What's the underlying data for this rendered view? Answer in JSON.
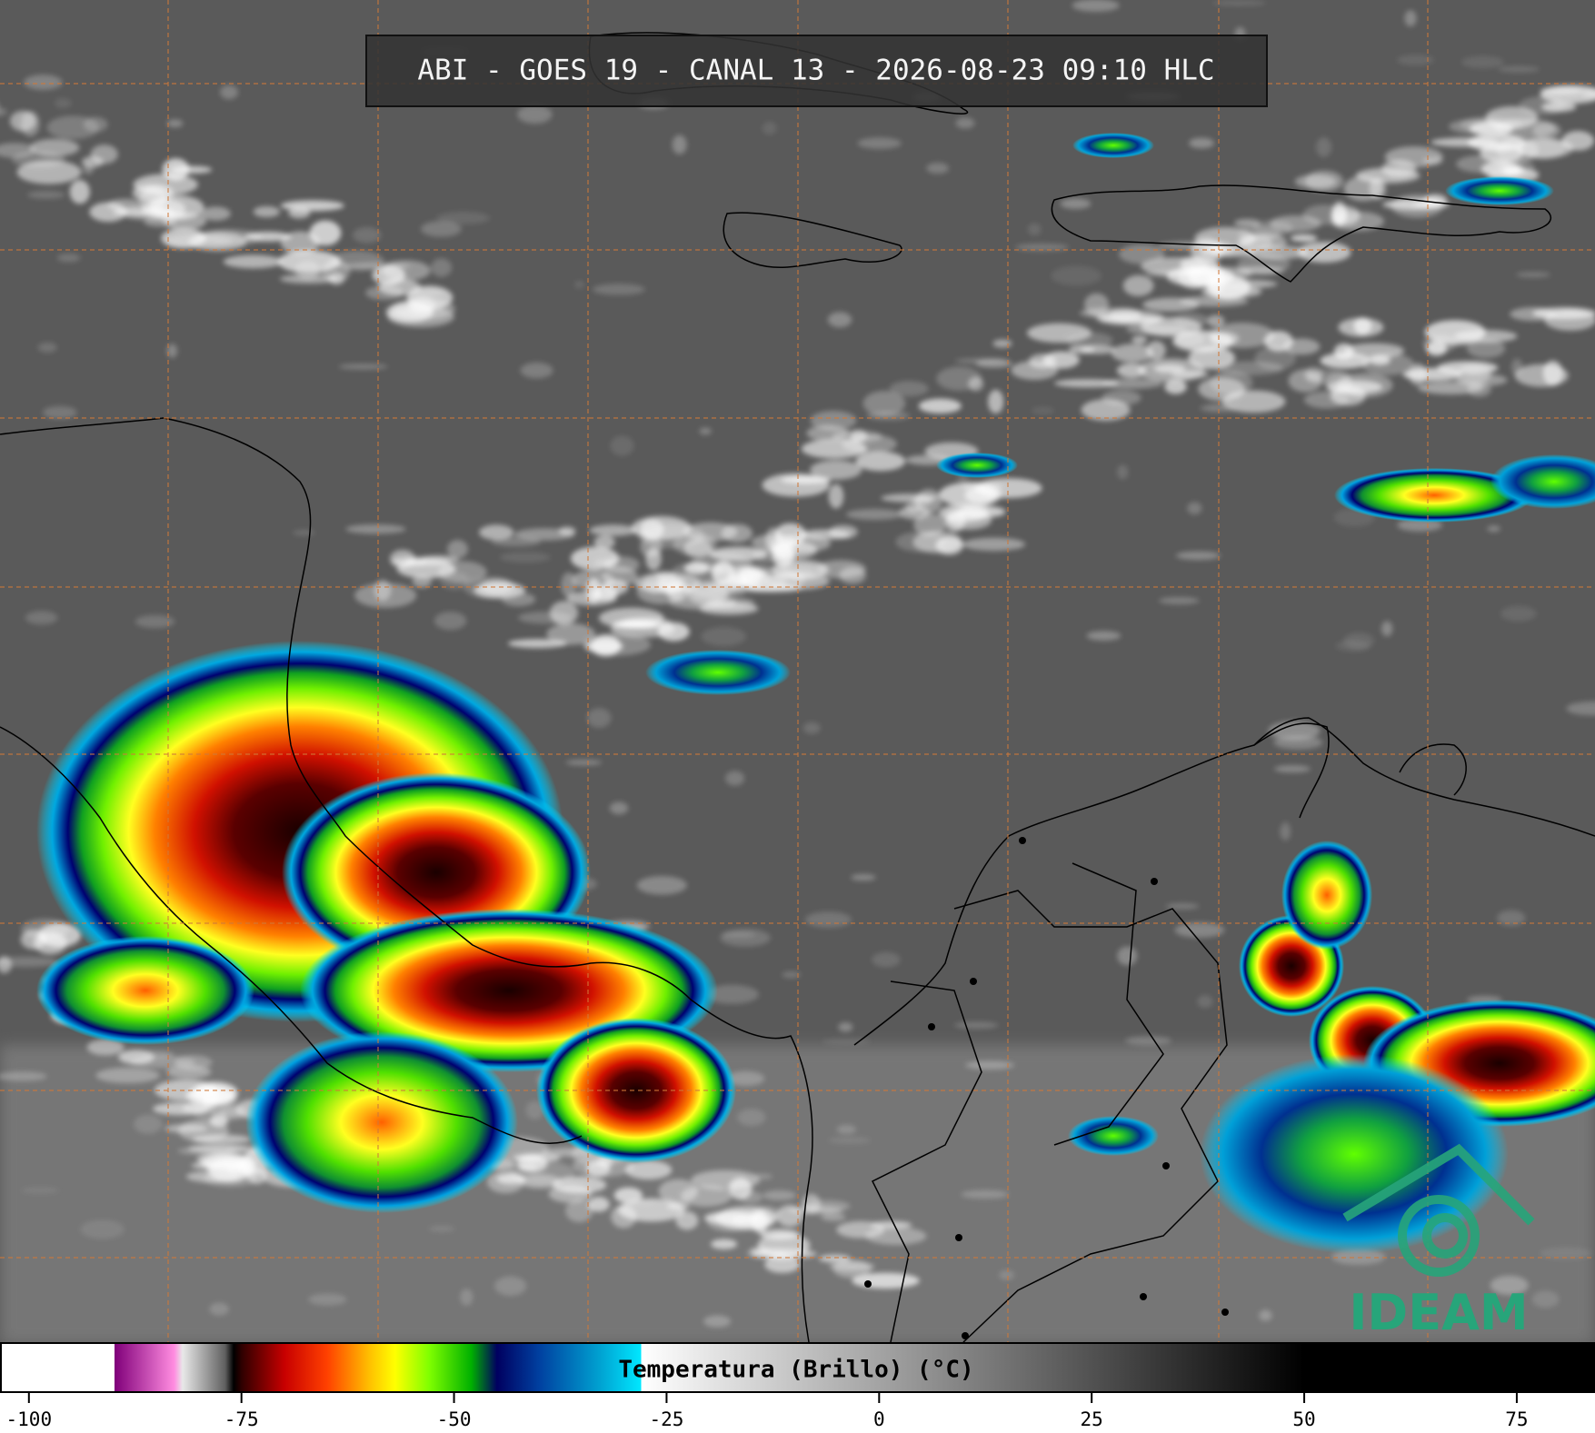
{
  "title": "ABI - GOES 19 - CANAL 13 - 2026-08-23 09:10 HLC",
  "logo": "IDEAM",
  "colorbar": {
    "label": "Temperatura (Brillo) (°C)",
    "lim": [
      -103.4,
      84.2
    ],
    "ticks": [
      -100,
      -75,
      -50,
      -25,
      0,
      25,
      50,
      75
    ],
    "stops": [
      {
        "value": -103.4,
        "color": "#ffffff"
      },
      {
        "value": -90,
        "color": "#ffffff"
      },
      {
        "value": -90,
        "color": "#80007a"
      },
      {
        "value": -83,
        "color": "#ff8ce0"
      },
      {
        "value": -82,
        "color": "#e8e8e8"
      },
      {
        "value": -77,
        "color": "#606060"
      },
      {
        "value": -76,
        "color": "#000000"
      },
      {
        "value": -75,
        "color": "#300000"
      },
      {
        "value": -70,
        "color": "#c80000"
      },
      {
        "value": -65,
        "color": "#ff4000"
      },
      {
        "value": -60,
        "color": "#ffc000"
      },
      {
        "value": -57,
        "color": "#ffff00"
      },
      {
        "value": -53,
        "color": "#80ff00"
      },
      {
        "value": -48,
        "color": "#00b000"
      },
      {
        "value": -45,
        "color": "#000060"
      },
      {
        "value": -40,
        "color": "#0040a0"
      },
      {
        "value": -33,
        "color": "#00a0d0"
      },
      {
        "value": -28,
        "color": "#00e8ff"
      },
      {
        "value": -28,
        "color": "#ffffff"
      },
      {
        "value": 50,
        "color": "#000000"
      },
      {
        "value": 84.2,
        "color": "#000000"
      }
    ]
  }
}
